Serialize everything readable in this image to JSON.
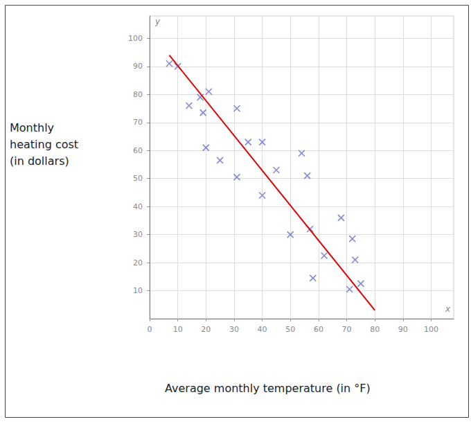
{
  "chart_data": {
    "type": "scatter",
    "ylabel": "Monthly\nheating cost\n(in dollars)",
    "xlabel": "Average monthly temperature (in °F)",
    "x_axis_symbol": "x",
    "y_axis_symbol": "y",
    "x": [
      7,
      10,
      14,
      18,
      19,
      21,
      20,
      25,
      31,
      31,
      35,
      40,
      40,
      45,
      54,
      56,
      50,
      57,
      62,
      58,
      68,
      72,
      73,
      75,
      71
    ],
    "values": [
      91,
      90,
      76,
      79,
      73.5,
      81,
      61,
      56.5,
      75,
      50.5,
      63,
      63,
      44,
      53,
      59,
      51,
      30,
      32,
      22.5,
      14.5,
      36,
      28.5,
      21,
      12.5,
      10.5
    ],
    "color": "#6a6ad0",
    "marker": "x",
    "trend_line": {
      "type": "line",
      "x": [
        7,
        80
      ],
      "values": [
        94,
        3
      ],
      "color": "#e00000"
    },
    "xlim": [
      0,
      108
    ],
    "ylim": [
      0,
      108
    ],
    "xticks": [
      0,
      10,
      20,
      30,
      40,
      50,
      60,
      70,
      80,
      90,
      100
    ],
    "yticks": [
      10,
      20,
      30,
      40,
      50,
      60,
      70,
      80,
      90,
      100
    ],
    "grid": true
  }
}
